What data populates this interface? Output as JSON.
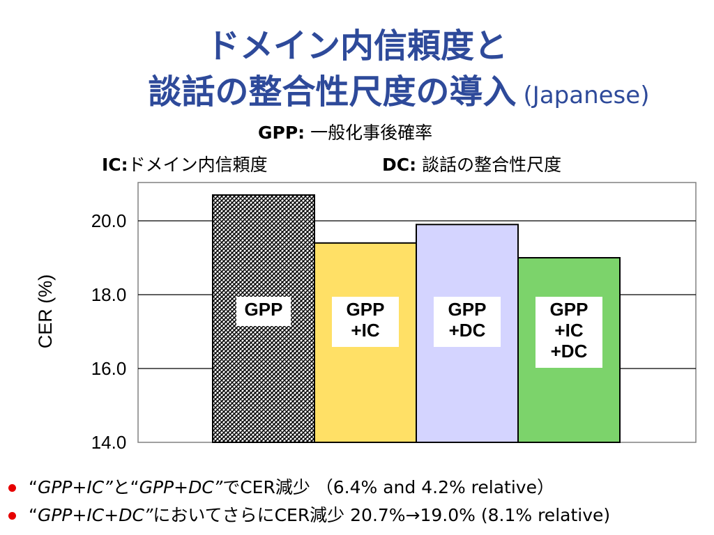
{
  "title": {
    "line1": "ドメイン内信頼度と",
    "line2": "談話の整合性尺度の導入",
    "line2_suffix": "(Japanese)"
  },
  "legend": {
    "gpp_key": "GPP:",
    "gpp_text": "一般化事後確率",
    "ic_key": "IC:",
    "ic_text": "ドメイン内信頼度",
    "dc_key": "DC:",
    "dc_text": "談話の整合性尺度"
  },
  "chart_data": {
    "type": "bar",
    "categories": [
      "GPP",
      "GPP +IC",
      "GPP +DC",
      "GPP +IC +DC"
    ],
    "bar_labels": [
      [
        "GPP"
      ],
      [
        "GPP",
        "+IC"
      ],
      [
        "GPP",
        "+DC"
      ],
      [
        "GPP",
        "+IC",
        "+DC"
      ]
    ],
    "values": [
      20.7,
      19.4,
      19.9,
      19.0
    ],
    "colors": [
      "#606060",
      "#ffe066",
      "#d4d4ff",
      "#7cd36b"
    ],
    "ylabel": "CER (%)",
    "ylim": [
      14.0,
      20.0
    ],
    "yticks": [
      "14.0",
      "16.0",
      "18.0",
      "20.0"
    ],
    "grid": true
  },
  "bullets": [
    {
      "q1": "“",
      "i1": "GPP+IC”",
      "t1": "と“",
      "i2": "GPP+DC”",
      "t2": "でCER減少 （6.4% and 4.2% relative）"
    },
    {
      "q1": "“",
      "i1": "GPP+IC+DC”",
      "t1": "においてさらにCER減少 20.7%→19.0% (8.1% relative)"
    }
  ]
}
